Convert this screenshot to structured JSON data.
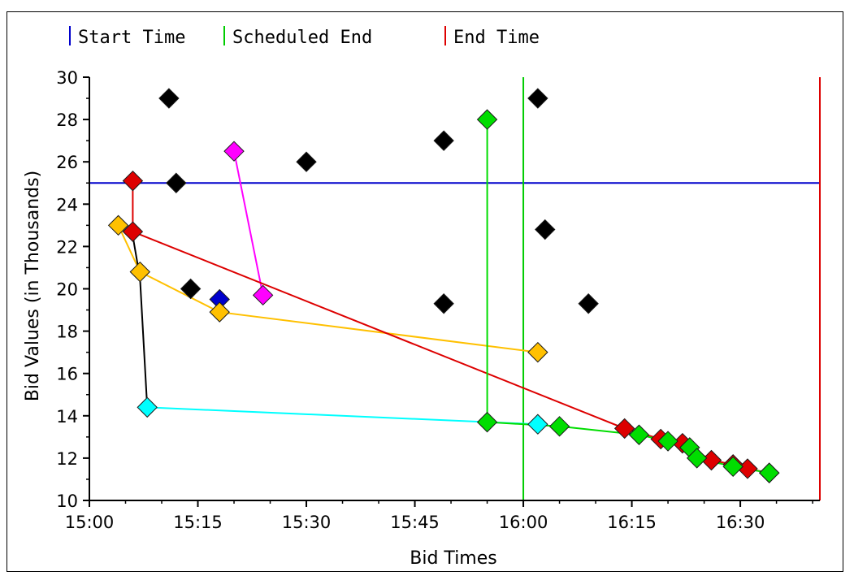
{
  "chart_data": {
    "type": "line",
    "title": "",
    "xlabel": "Bid Times",
    "ylabel": "Bid Values (in Thousands)",
    "x_ticks": [
      "15:00",
      "15:15",
      "15:30",
      "15:45",
      "16:00",
      "16:15",
      "16:30"
    ],
    "y_ticks": [
      "10",
      "12",
      "14",
      "16",
      "18",
      "20",
      "22",
      "24",
      "26",
      "28",
      "30"
    ],
    "xlim": [
      "15:00",
      "16:41"
    ],
    "ylim": [
      10,
      30
    ],
    "grid": false,
    "legend_placement": "top",
    "legend": [
      {
        "label": "Start Time",
        "color": "#0000cc"
      },
      {
        "label": "Scheduled End",
        "color": "#00cc00"
      },
      {
        "label": "End Time",
        "color": "#dd0000"
      }
    ],
    "reference_lines": [
      {
        "name": "Start Time",
        "orientation": "horizontal",
        "y": 25.0,
        "color": "#0000cc"
      },
      {
        "name": "Scheduled End",
        "orientation": "vertical",
        "x": "16:00",
        "color": "#00cc00"
      },
      {
        "name": "End Time",
        "orientation": "vertical",
        "x": "16:41",
        "color": "#dd0000"
      }
    ],
    "series": [
      {
        "color": "#000000",
        "markers": true,
        "line": false,
        "points": [
          [
            "15:11",
            29.0
          ],
          [
            "15:12",
            25.0
          ],
          [
            "15:14",
            20.0
          ],
          [
            "15:30",
            26.0
          ],
          [
            "15:49",
            27.0
          ],
          [
            "15:49",
            19.3
          ],
          [
            "16:02",
            29.0
          ],
          [
            "16:03",
            22.8
          ],
          [
            "16:09",
            19.3
          ]
        ]
      },
      {
        "color": "#0000cc",
        "markers": true,
        "line": false,
        "points": [
          [
            "15:18",
            19.5
          ]
        ]
      },
      {
        "color": "#ff00ff",
        "markers": true,
        "line": true,
        "points": [
          [
            "15:20",
            26.5
          ],
          [
            "15:24",
            19.7
          ]
        ]
      },
      {
        "color": "#ffc000",
        "markers": true,
        "line": true,
        "points": [
          [
            "15:04",
            23.0
          ],
          [
            "15:07",
            20.8
          ],
          [
            "15:18",
            18.9
          ],
          [
            "16:02",
            17.0
          ]
        ]
      },
      {
        "color": "#00ffff",
        "markers": true,
        "line": true,
        "points": [
          [
            "15:08",
            14.4
          ],
          [
            "16:02",
            13.6
          ]
        ]
      },
      {
        "color": "#000000",
        "markers": false,
        "line": true,
        "points": [
          [
            "15:06",
            22.5
          ],
          [
            "15:07",
            20.5
          ],
          [
            "15:08",
            14.4
          ]
        ]
      },
      {
        "color": "#dd0000",
        "markers": true,
        "line": true,
        "points": [
          [
            "15:06",
            25.1
          ],
          [
            "15:06",
            22.7
          ],
          [
            "16:14",
            13.4
          ],
          [
            "16:19",
            12.9
          ],
          [
            "16:22",
            12.7
          ],
          [
            "16:26",
            11.9
          ],
          [
            "16:29",
            11.7
          ],
          [
            "16:31",
            11.5
          ],
          [
            "16:34",
            11.3
          ]
        ]
      },
      {
        "color": "#00dd00",
        "markers": true,
        "line": true,
        "points": [
          [
            "15:55",
            28.0
          ],
          [
            "15:55",
            13.7
          ],
          [
            "16:05",
            13.5
          ],
          [
            "16:16",
            13.1
          ],
          [
            "16:20",
            12.8
          ],
          [
            "16:23",
            12.5
          ],
          [
            "16:24",
            12.0
          ],
          [
            "16:29",
            11.6
          ],
          [
            "16:34",
            11.3
          ]
        ]
      }
    ]
  }
}
